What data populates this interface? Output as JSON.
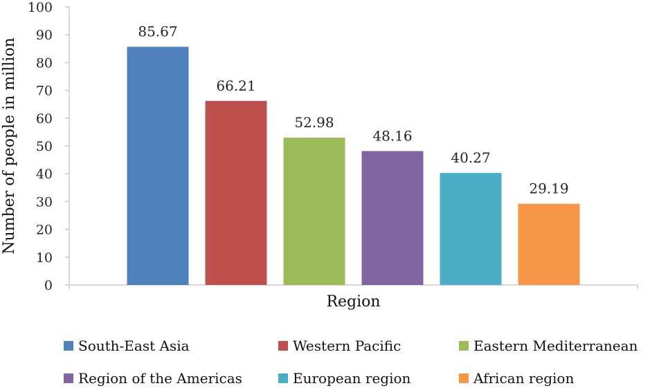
{
  "chart_data": {
    "type": "bar",
    "categories": [
      "South-East Asia",
      "Western Pacific",
      "Eastern Mediterranean",
      "Region of the Americas",
      "European region",
      "African region"
    ],
    "values": [
      85.67,
      66.21,
      52.98,
      48.16,
      40.27,
      29.19
    ],
    "value_labels": [
      "85.67",
      "66.21",
      "52.98",
      "48.16",
      "40.27",
      "29.19"
    ],
    "colors": [
      "#4f81bd",
      "#c0504d",
      "#9bbb59",
      "#8064a2",
      "#4bacc6",
      "#f79646"
    ],
    "xlabel": "Region",
    "ylabel": "Number of people in million",
    "ylim": [
      0,
      100
    ],
    "yticks": [
      0,
      10,
      20,
      30,
      40,
      50,
      60,
      70,
      80,
      90,
      100
    ],
    "grid": false,
    "legend": "bottom"
  }
}
